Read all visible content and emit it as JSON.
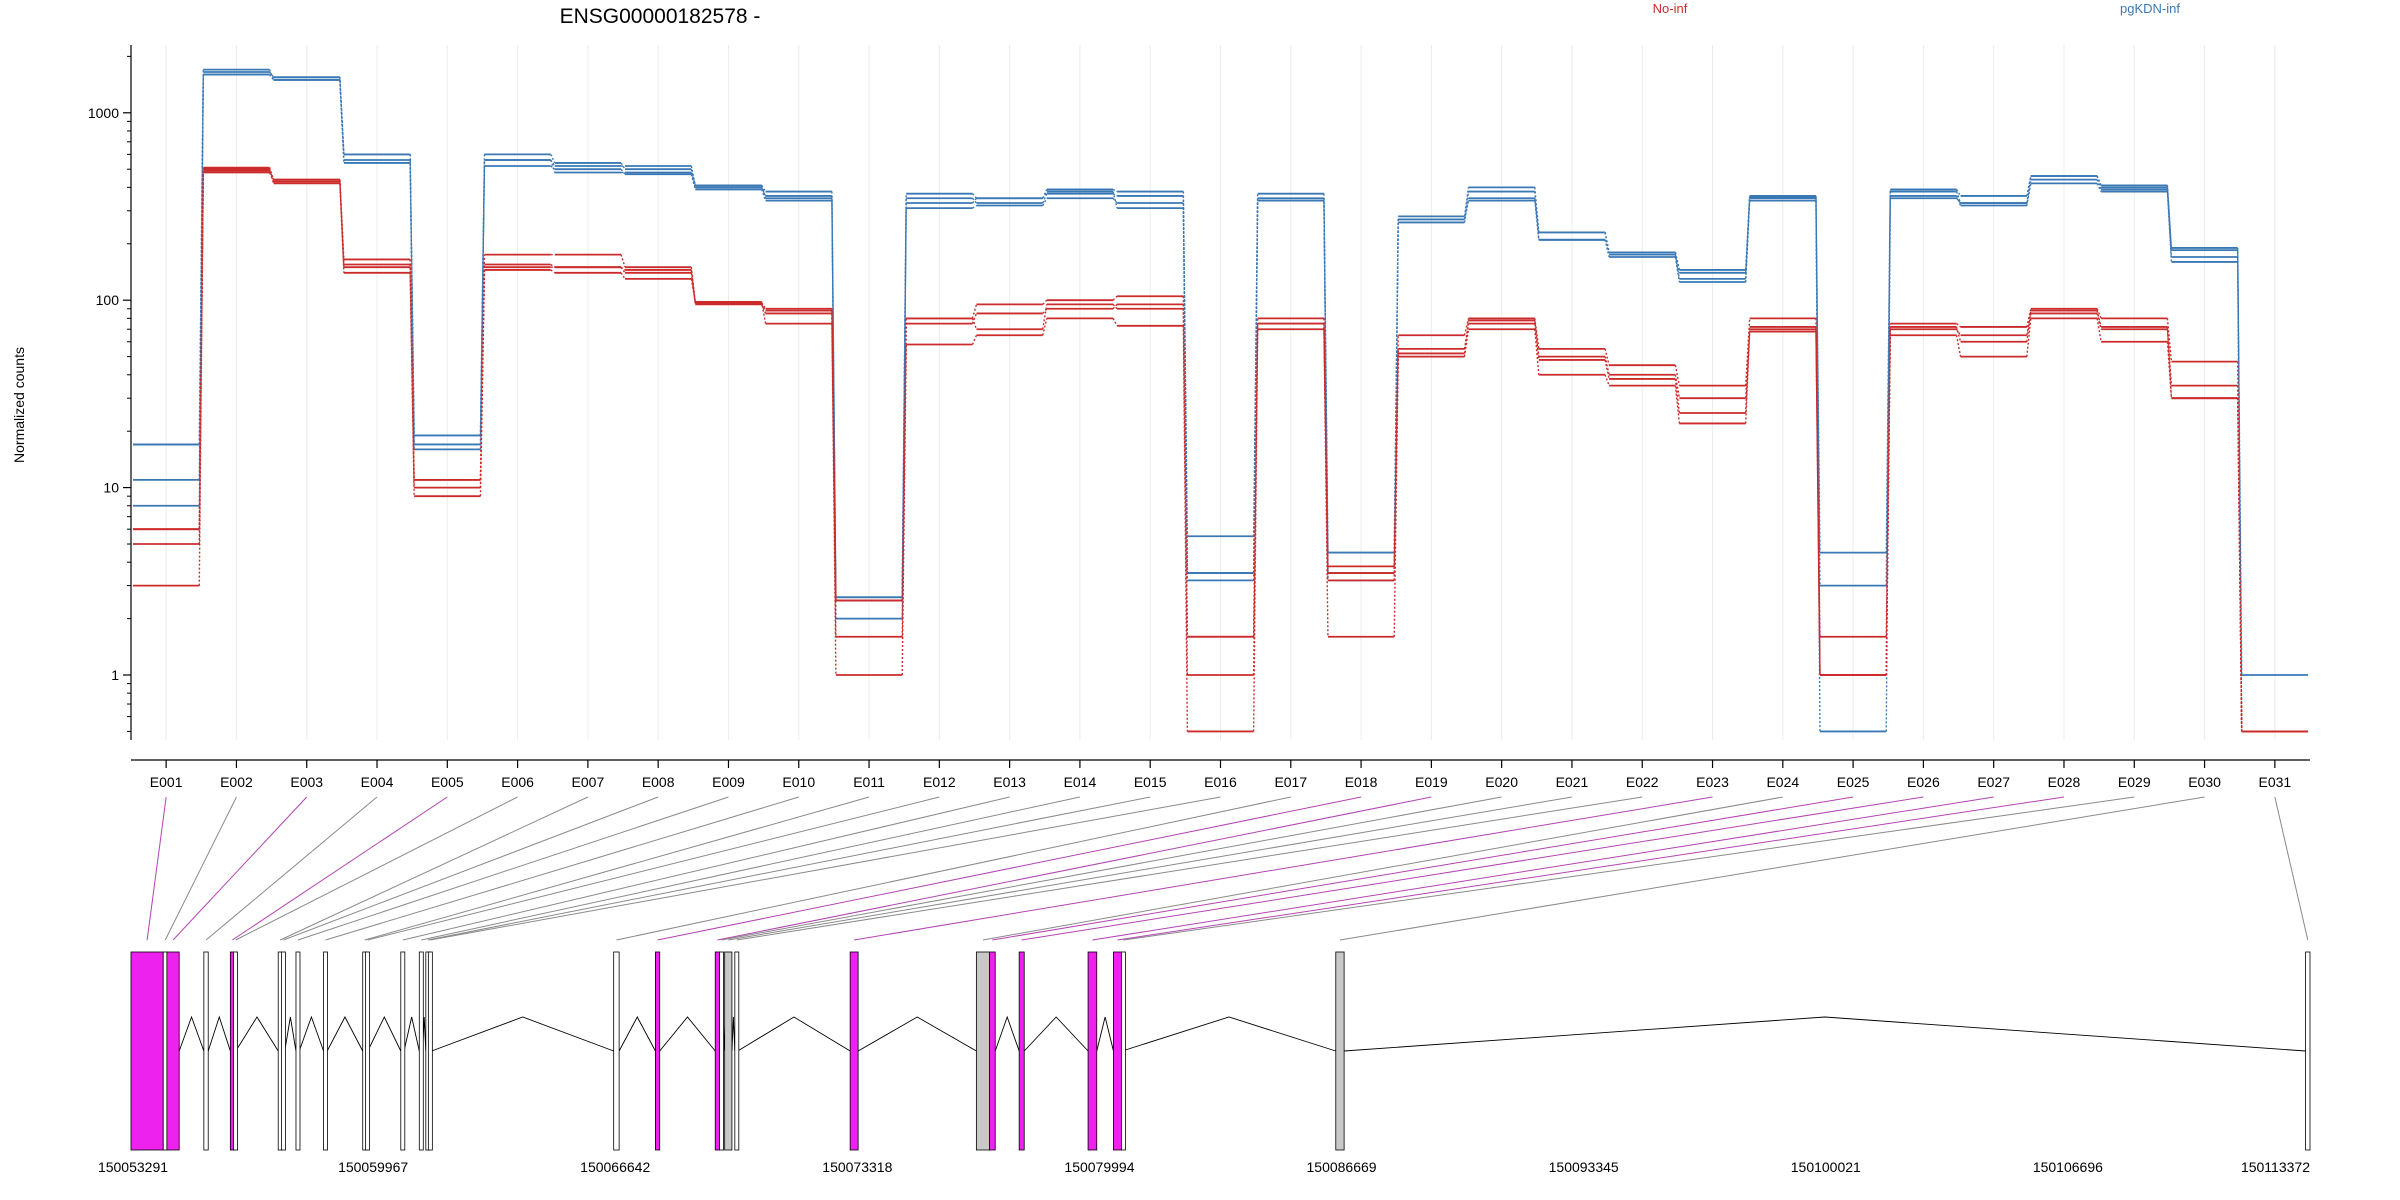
{
  "chart_data": {
    "type": "line",
    "title": "ENSG00000182578 -",
    "ylabel": "Normalized counts",
    "xlabel": "",
    "yscale": "log",
    "ylim": [
      0.45,
      2300
    ],
    "y_ticks": [
      1,
      10,
      100,
      1000
    ],
    "y_tick_labels": [
      "1",
      "10",
      "100",
      "1000"
    ],
    "grid": "vertical",
    "legend_placement": "top",
    "categories": [
      "E001",
      "E002",
      "E003",
      "E004",
      "E005",
      "E006",
      "E007",
      "E008",
      "E009",
      "E010",
      "E011",
      "E012",
      "E013",
      "E014",
      "E015",
      "E016",
      "E017",
      "E018",
      "E019",
      "E020",
      "E021",
      "E022",
      "E023",
      "E024",
      "E025",
      "E026",
      "E027",
      "E028",
      "E029",
      "E030",
      "E031"
    ],
    "series": [
      {
        "name": "pgKDN-inf",
        "color": "#3a78b5",
        "values": [
          [
            17,
            11,
            8,
            17
          ],
          [
            1650,
            1700,
            1600,
            1600
          ],
          [
            1550,
            1500,
            1500,
            1500
          ],
          [
            600,
            560,
            600,
            540
          ],
          [
            19,
            17,
            16,
            19
          ],
          [
            560,
            600,
            520,
            560
          ],
          [
            520,
            540,
            500,
            480
          ],
          [
            520,
            500,
            470,
            480
          ],
          [
            410,
            400,
            390,
            410
          ],
          [
            380,
            360,
            340,
            350
          ],
          [
            2.6,
            2.5,
            2.0,
            2.6
          ],
          [
            370,
            350,
            310,
            330
          ],
          [
            350,
            330,
            320,
            350
          ],
          [
            390,
            370,
            350,
            380
          ],
          [
            380,
            360,
            330,
            310
          ],
          [
            5.5,
            3.5,
            3.5,
            3.2
          ],
          [
            370,
            350,
            340,
            340
          ],
          [
            4.5,
            3.5,
            3.2,
            4.5
          ],
          [
            280,
            270,
            270,
            260
          ],
          [
            400,
            380,
            340,
            350
          ],
          [
            230,
            210,
            210,
            230
          ],
          [
            180,
            175,
            170,
            180
          ],
          [
            140,
            130,
            125,
            145
          ],
          [
            360,
            350,
            340,
            355
          ],
          [
            4.5,
            3.0,
            1.0,
            0.5
          ],
          [
            390,
            380,
            360,
            350
          ],
          [
            360,
            330,
            320,
            330
          ],
          [
            460,
            440,
            420,
            460
          ],
          [
            410,
            390,
            380,
            400
          ],
          [
            190,
            170,
            160,
            185
          ],
          [
            1.0,
            0.5,
            0.5,
            0.5
          ]
        ]
      },
      {
        "name": "No-inf",
        "color": "#cc2b2b",
        "values": [
          [
            6,
            5,
            3,
            6
          ],
          [
            510,
            480,
            500,
            490
          ],
          [
            440,
            430,
            420,
            440
          ],
          [
            165,
            150,
            140,
            155
          ],
          [
            11,
            10,
            9,
            11
          ],
          [
            175,
            155,
            145,
            150
          ],
          [
            175,
            150,
            140,
            150
          ],
          [
            150,
            140,
            130,
            145
          ],
          [
            97,
            95,
            98,
            96
          ],
          [
            90,
            85,
            75,
            88
          ],
          [
            2.5,
            1.6,
            1.0,
            2.5
          ],
          [
            80,
            75,
            58,
            80
          ],
          [
            95,
            85,
            65,
            70
          ],
          [
            100,
            90,
            80,
            95
          ],
          [
            105,
            95,
            73,
            90
          ],
          [
            1.6,
            1.0,
            0.5,
            1.6
          ],
          [
            80,
            75,
            70,
            75
          ],
          [
            3.8,
            3.2,
            1.6,
            3.5
          ],
          [
            65,
            55,
            50,
            52
          ],
          [
            80,
            75,
            70,
            78
          ],
          [
            55,
            50,
            40,
            48
          ],
          [
            45,
            40,
            35,
            38
          ],
          [
            35,
            30,
            22,
            25
          ],
          [
            80,
            72,
            68,
            70
          ],
          [
            1.6,
            1.0,
            1.0,
            1.0
          ],
          [
            75,
            70,
            65,
            72
          ],
          [
            72,
            65,
            50,
            60
          ],
          [
            90,
            85,
            80,
            88
          ],
          [
            80,
            70,
            60,
            72
          ],
          [
            47,
            35,
            30,
            30
          ],
          [
            0.5,
            0.5,
            0.5,
            0.5
          ]
        ]
      }
    ]
  },
  "legend": [
    {
      "label": "No-inf",
      "color": "#cc2b2b"
    },
    {
      "label": "pgKDN-inf",
      "color": "#3a78b5"
    }
  ],
  "gene_model": {
    "coordinate_labels": [
      "150053291",
      "150059967",
      "150066642",
      "150073318",
      "150079994",
      "150086669",
      "150093345",
      "150100021",
      "150106696",
      "150113372"
    ],
    "exons": [
      {
        "id": "E001",
        "start": 150053291,
        "end": 150054180,
        "highlight": true
      },
      {
        "id": "E002",
        "start": 150054180,
        "end": 150054205,
        "highlight": false
      },
      {
        "id": "E003",
        "start": 150054280,
        "end": 150054620,
        "highlight": true
      },
      {
        "id": "E004",
        "start": 150055300,
        "end": 150055420,
        "highlight": false
      },
      {
        "id": "E005",
        "start": 150056030,
        "end": 150056120,
        "highlight": true
      },
      {
        "id": "E006",
        "start": 150056120,
        "end": 150056180,
        "highlight": false
      },
      {
        "id": "E007",
        "start": 150057350,
        "end": 150057440,
        "highlight": false
      },
      {
        "id": "E008",
        "start": 150057440,
        "end": 150057530,
        "highlight": false
      },
      {
        "id": "E009",
        "start": 150057840,
        "end": 150057930,
        "highlight": false
      },
      {
        "id": "E010",
        "start": 150058600,
        "end": 150058700,
        "highlight": false
      },
      {
        "id": "E011",
        "start": 150059680,
        "end": 150059760,
        "highlight": false
      },
      {
        "id": "E012",
        "start": 150059760,
        "end": 150059820,
        "highlight": false
      },
      {
        "id": "E013",
        "start": 150060730,
        "end": 150060820,
        "highlight": false
      },
      {
        "id": "E014",
        "start": 150061240,
        "end": 150061330,
        "highlight": false
      },
      {
        "id": "E015",
        "start": 150061420,
        "end": 150061490,
        "highlight": false
      },
      {
        "id": "E016",
        "start": 150061490,
        "end": 150061580,
        "highlight": false
      },
      {
        "id": "E017",
        "start": 150066600,
        "end": 150066750,
        "highlight": false
      },
      {
        "id": "E018",
        "start": 150067750,
        "end": 150067870,
        "highlight": true
      },
      {
        "id": "E019",
        "start": 150069400,
        "end": 150069520,
        "highlight": true
      },
      {
        "id": "E020",
        "start": 150069520,
        "end": 150069580,
        "highlight": false
      },
      {
        "id": "E021",
        "start": 150069660,
        "end": 150069860,
        "highlight": false
      },
      {
        "id": "E022",
        "start": 150069940,
        "end": 150070020,
        "highlight": false
      },
      {
        "id": "E023",
        "start": 150073120,
        "end": 150073340,
        "highlight": true
      },
      {
        "id": "E024",
        "start": 150076600,
        "end": 150076960,
        "highlight": false
      },
      {
        "id": "E025",
        "start": 150076960,
        "end": 150077120,
        "highlight": true
      },
      {
        "id": "E026",
        "start": 150077780,
        "end": 150077920,
        "highlight": true
      },
      {
        "id": "E027",
        "start": 150079680,
        "end": 150079920,
        "highlight": true
      },
      {
        "id": "E028",
        "start": 150080380,
        "end": 150080600,
        "highlight": true
      },
      {
        "id": "E029",
        "start": 150080600,
        "end": 150080620,
        "highlight": false
      },
      {
        "id": "E030",
        "start": 150086510,
        "end": 150086740,
        "highlight": false
      },
      {
        "id": "E031",
        "start": 150113250,
        "end": 150113372,
        "highlight": false
      }
    ]
  }
}
